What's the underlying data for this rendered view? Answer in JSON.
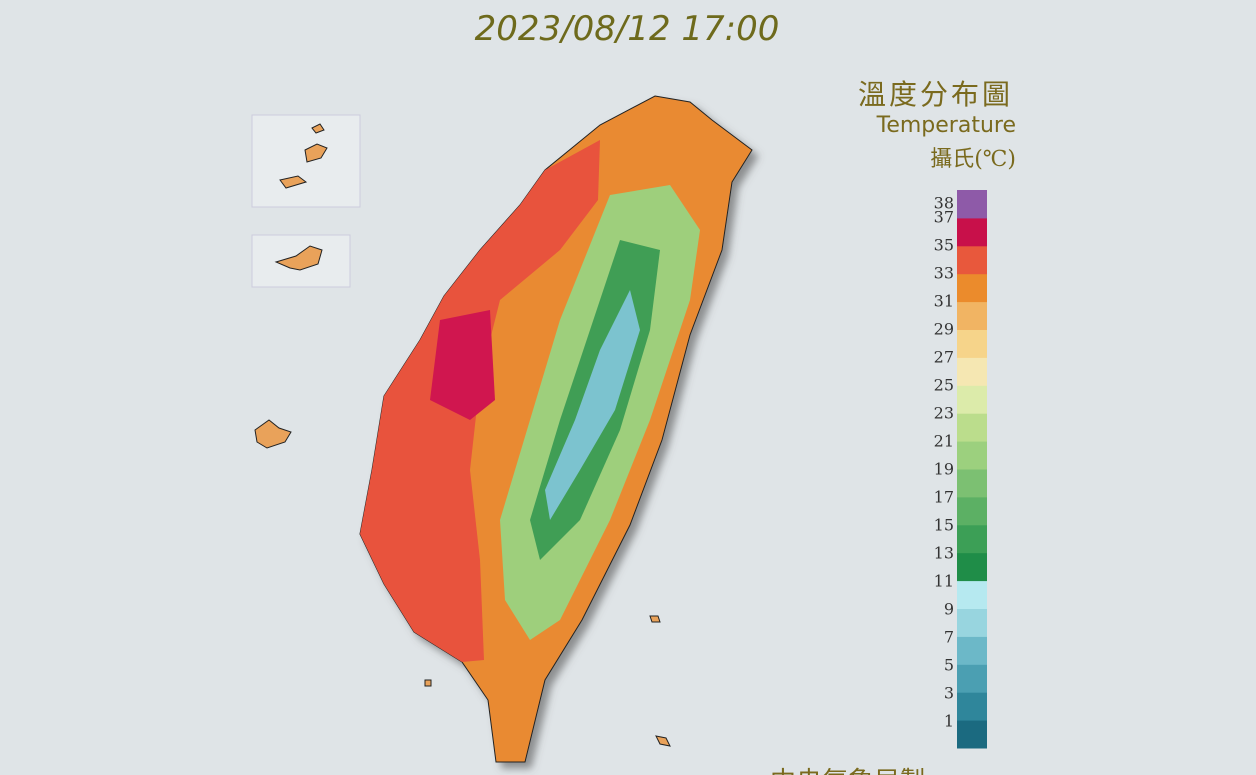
{
  "timestamp": "2023/08/12 17:00",
  "legend": {
    "title": "溫度分布圖",
    "subtitle": "Temperature",
    "unit": "攝氏(℃)",
    "labels": [
      38,
      37,
      35,
      33,
      31,
      29,
      27,
      25,
      23,
      21,
      19,
      17,
      15,
      13,
      11,
      9,
      7,
      5,
      3,
      1
    ],
    "colors": [
      "#1b6a80",
      "#2f869b",
      "#4b9fb2",
      "#6cb8c8",
      "#98d5df",
      "#b6e9f0",
      "#1f8d48",
      "#3c9f56",
      "#5cb064",
      "#7cc072",
      "#9cd07e",
      "#bbdd8c",
      "#dcebaa",
      "#f5e7b2",
      "#f6d48a",
      "#f1b463",
      "#eb8b2c",
      "#e8583c",
      "#c8104a",
      "#8e5aa8"
    ]
  },
  "footer": "中央氣象局製"
}
